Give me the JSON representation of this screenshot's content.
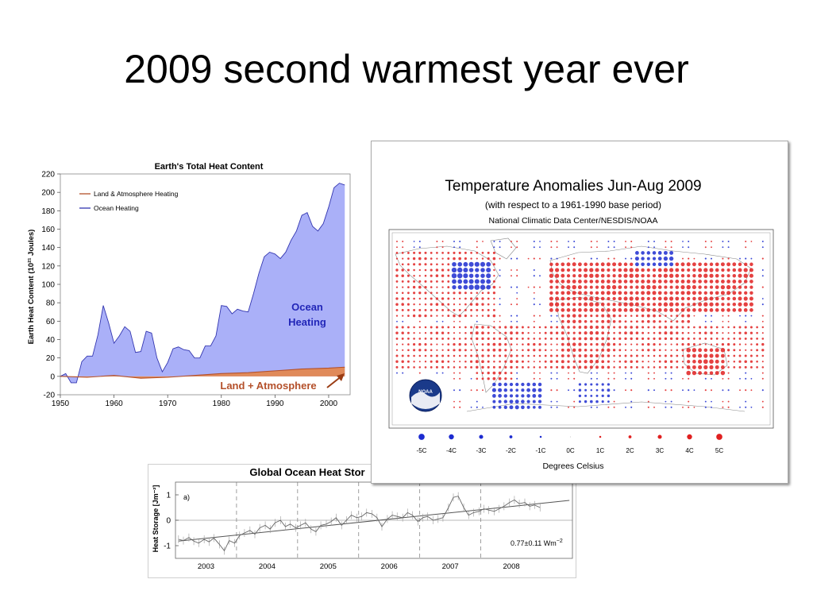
{
  "slide": {
    "title": "2009 second warmest year ever"
  },
  "heat_chart": {
    "legend_land": "Land & Atmosphere Heating",
    "legend_ocean": "Ocean Heating",
    "ocean_label_line1": "Ocean",
    "ocean_label_line2": "Heating",
    "land_label": "Land + Atmosphere"
  },
  "ocean_chart": {
    "panel_label": "a)",
    "trend_label": "0.77±0.11 Wm",
    "trend_sup": "−2"
  },
  "map_chart": {
    "noaa_label": "NOAA"
  },
  "colors": {
    "ocean_fill": "#aab0f8",
    "ocean_line": "#3336b0",
    "land_fill": "#e08a5a",
    "land_line": "#b4502a",
    "warm": "#e02020",
    "cool": "#1c2bd0"
  },
  "chart_data": [
    {
      "type": "area",
      "title": "Earth's Total Heat Content",
      "xlabel": "",
      "ylabel": "Earth Heat Content (10²¹ Joules)",
      "xlim": [
        1950,
        2004
      ],
      "ylim": [
        -20,
        220
      ],
      "xticks": [
        1950,
        1960,
        1970,
        1980,
        1990,
        2000
      ],
      "yticks": [
        -20,
        0,
        20,
        40,
        60,
        80,
        100,
        120,
        140,
        160,
        180,
        200,
        220
      ],
      "grid": false,
      "legend_position": "top-left",
      "series": [
        {
          "name": "Ocean Heating",
          "x": [
            1950,
            1951,
            1952,
            1953,
            1954,
            1955,
            1956,
            1957,
            1958,
            1959,
            1960,
            1961,
            1962,
            1963,
            1964,
            1965,
            1966,
            1967,
            1968,
            1969,
            1970,
            1971,
            1972,
            1973,
            1974,
            1975,
            1976,
            1977,
            1978,
            1979,
            1980,
            1981,
            1982,
            1983,
            1984,
            1985,
            1986,
            1987,
            1988,
            1989,
            1990,
            1991,
            1992,
            1993,
            1994,
            1995,
            1996,
            1997,
            1998,
            1999,
            2000,
            2001,
            2002,
            2003
          ],
          "values": [
            0,
            3,
            -7,
            -7,
            16,
            22,
            22,
            45,
            77,
            58,
            36,
            44,
            54,
            49,
            26,
            27,
            49,
            47,
            20,
            5,
            15,
            30,
            32,
            29,
            28,
            20,
            20,
            33,
            33,
            44,
            77,
            76,
            68,
            73,
            71,
            70,
            90,
            112,
            130,
            135,
            133,
            128,
            135,
            148,
            158,
            175,
            178,
            163,
            158,
            166,
            184,
            205,
            210,
            208
          ]
        },
        {
          "name": "Land & Atmosphere Heating",
          "x": [
            1950,
            1955,
            1960,
            1965,
            1970,
            1975,
            1980,
            1985,
            1990,
            1995,
            2000,
            2003
          ],
          "values": [
            0,
            -1,
            1,
            -2,
            -1,
            1,
            3,
            4,
            6,
            8,
            9,
            10
          ]
        }
      ]
    },
    {
      "type": "map",
      "title": "Temperature Anomalies Jun-Aug 2009",
      "subtitle": "(with respect to a 1961-1990 base period)",
      "source": "National Climatic Data Center/NESDIS/NOAA",
      "legend_title": "Degrees Celsius",
      "legend_entries": [
        {
          "label": "-5C",
          "value": -5
        },
        {
          "label": "-4C",
          "value": -4
        },
        {
          "label": "-3C",
          "value": -3
        },
        {
          "label": "-2C",
          "value": -2
        },
        {
          "label": "-1C",
          "value": -1
        },
        {
          "label": "0C",
          "value": 0
        },
        {
          "label": "1C",
          "value": 1
        },
        {
          "label": "2C",
          "value": 2
        },
        {
          "label": "3C",
          "value": 3
        },
        {
          "label": "4C",
          "value": 4
        },
        {
          "label": "5C",
          "value": 5
        }
      ]
    },
    {
      "type": "line",
      "title": "Global Ocean Heat Stor",
      "xlabel": "",
      "ylabel": "Heat Storage [Jm⁻²]",
      "xlim": [
        2002.5,
        2009
      ],
      "ylim": [
        -1.5,
        1.5
      ],
      "yticks": [
        -1,
        0,
        1
      ],
      "xticks": [
        "2003",
        "2004",
        "2005",
        "2006",
        "2007",
        "2008"
      ],
      "year_dividers": [
        2003.5,
        2004.5,
        2005.5,
        2006.5,
        2007.5
      ],
      "trend": {
        "label": "0.77±0.11 Wm⁻²",
        "start": -0.82,
        "end": 0.78
      },
      "series": [
        {
          "x": [
            2002.55,
            2002.63,
            2002.72,
            2002.8,
            2002.88,
            2002.97,
            2003.05,
            2003.13,
            2003.22,
            2003.3,
            2003.38,
            2003.47,
            2003.55,
            2003.63,
            2003.72,
            2003.8,
            2003.88,
            2003.97,
            2004.05,
            2004.13,
            2004.22,
            2004.3,
            2004.38,
            2004.47,
            2004.55,
            2004.63,
            2004.72,
            2004.8,
            2004.88,
            2004.97,
            2005.05,
            2005.13,
            2005.22,
            2005.3,
            2005.38,
            2005.47,
            2005.55,
            2005.63,
            2005.72,
            2005.8,
            2005.88,
            2005.97,
            2006.05,
            2006.13,
            2006.22,
            2006.3,
            2006.38,
            2006.47,
            2006.55,
            2006.63,
            2006.72,
            2006.8,
            2006.88,
            2006.97,
            2007.05,
            2007.13,
            2007.22,
            2007.3,
            2007.38,
            2007.47,
            2007.55,
            2007.63,
            2007.72,
            2007.8,
            2007.88,
            2007.97,
            2008.05,
            2008.13,
            2008.22,
            2008.3,
            2008.38,
            2008.47
          ],
          "values": [
            -0.75,
            -0.8,
            -0.68,
            -0.82,
            -0.9,
            -0.75,
            -0.85,
            -0.7,
            -0.95,
            -1.2,
            -0.8,
            -0.9,
            -0.6,
            -0.5,
            -0.4,
            -0.55,
            -0.3,
            -0.2,
            -0.35,
            -0.1,
            0.0,
            -0.25,
            -0.15,
            -0.3,
            -0.2,
            -0.1,
            -0.35,
            -0.45,
            -0.2,
            -0.15,
            -0.05,
            0.1,
            -0.2,
            0.0,
            0.2,
            0.1,
            0.15,
            0.3,
            0.25,
            0.1,
            -0.25,
            0.05,
            0.2,
            0.15,
            0.1,
            0.3,
            0.2,
            -0.05,
            0.1,
            0.15,
            0.0,
            0.05,
            0.1,
            0.5,
            0.9,
            0.95,
            0.5,
            0.2,
            0.3,
            0.35,
            0.45,
            0.4,
            0.35,
            0.45,
            0.55,
            0.7,
            0.8,
            0.65,
            0.7,
            0.55,
            0.6,
            0.5
          ]
        }
      ]
    }
  ]
}
